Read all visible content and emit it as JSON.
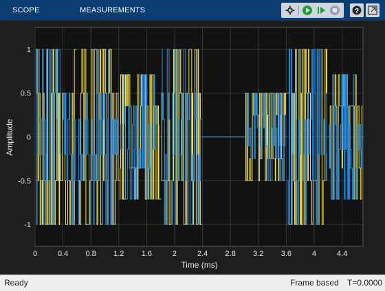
{
  "toolstrip": {
    "tabs": [
      "SCOPE",
      "MEASUREMENTS"
    ],
    "background": "#0b3d73"
  },
  "quick_access": {
    "icons": [
      "settings-icon",
      "run-icon",
      "step-forward-icon",
      "stop-icon",
      "help-icon",
      "undock-icon"
    ]
  },
  "chart_data": {
    "type": "line",
    "ylabel": "Amplitude",
    "xlabel": "Time (ms)",
    "xlim": [
      0,
      4.7
    ],
    "ylim": [
      -1.25,
      1.25
    ],
    "x_ticks": [
      "0",
      "0.4",
      "0.8",
      "1.2",
      "1.6",
      "2",
      "2.4",
      "2.8",
      "3.2",
      "3.6",
      "4",
      "4.4"
    ],
    "y_ticks": [
      "1",
      "0.5",
      "0",
      "-0.5",
      "-1"
    ],
    "grid": true,
    "background": "#121212",
    "series": [
      {
        "color": "#2b8ee3",
        "segments": [
          {
            "x_start": 0.0,
            "x_end": 0.6,
            "level": 1.0
          },
          {
            "x_start": 0.6,
            "x_end": 1.2,
            "level": 1.0
          },
          {
            "x_start": 1.2,
            "x_end": 1.8,
            "level": 0.71
          },
          {
            "x_start": 1.8,
            "x_end": 2.4,
            "level": 1.0
          },
          {
            "x_start": 2.4,
            "x_end": 3.0,
            "level": 0.0
          },
          {
            "x_start": 3.0,
            "x_end": 3.6,
            "level": 0.5
          },
          {
            "x_start": 3.6,
            "x_end": 4.2,
            "level": 1.0
          },
          {
            "x_start": 4.2,
            "x_end": 4.7,
            "level": 0.71
          }
        ]
      },
      {
        "color": "#f0de5a",
        "note_levels": [
          1.0,
          0.5,
          -0.5,
          -1.0
        ]
      }
    ]
  },
  "status": {
    "left": "Ready",
    "mode": "Frame based",
    "time": "T=0.0000"
  }
}
